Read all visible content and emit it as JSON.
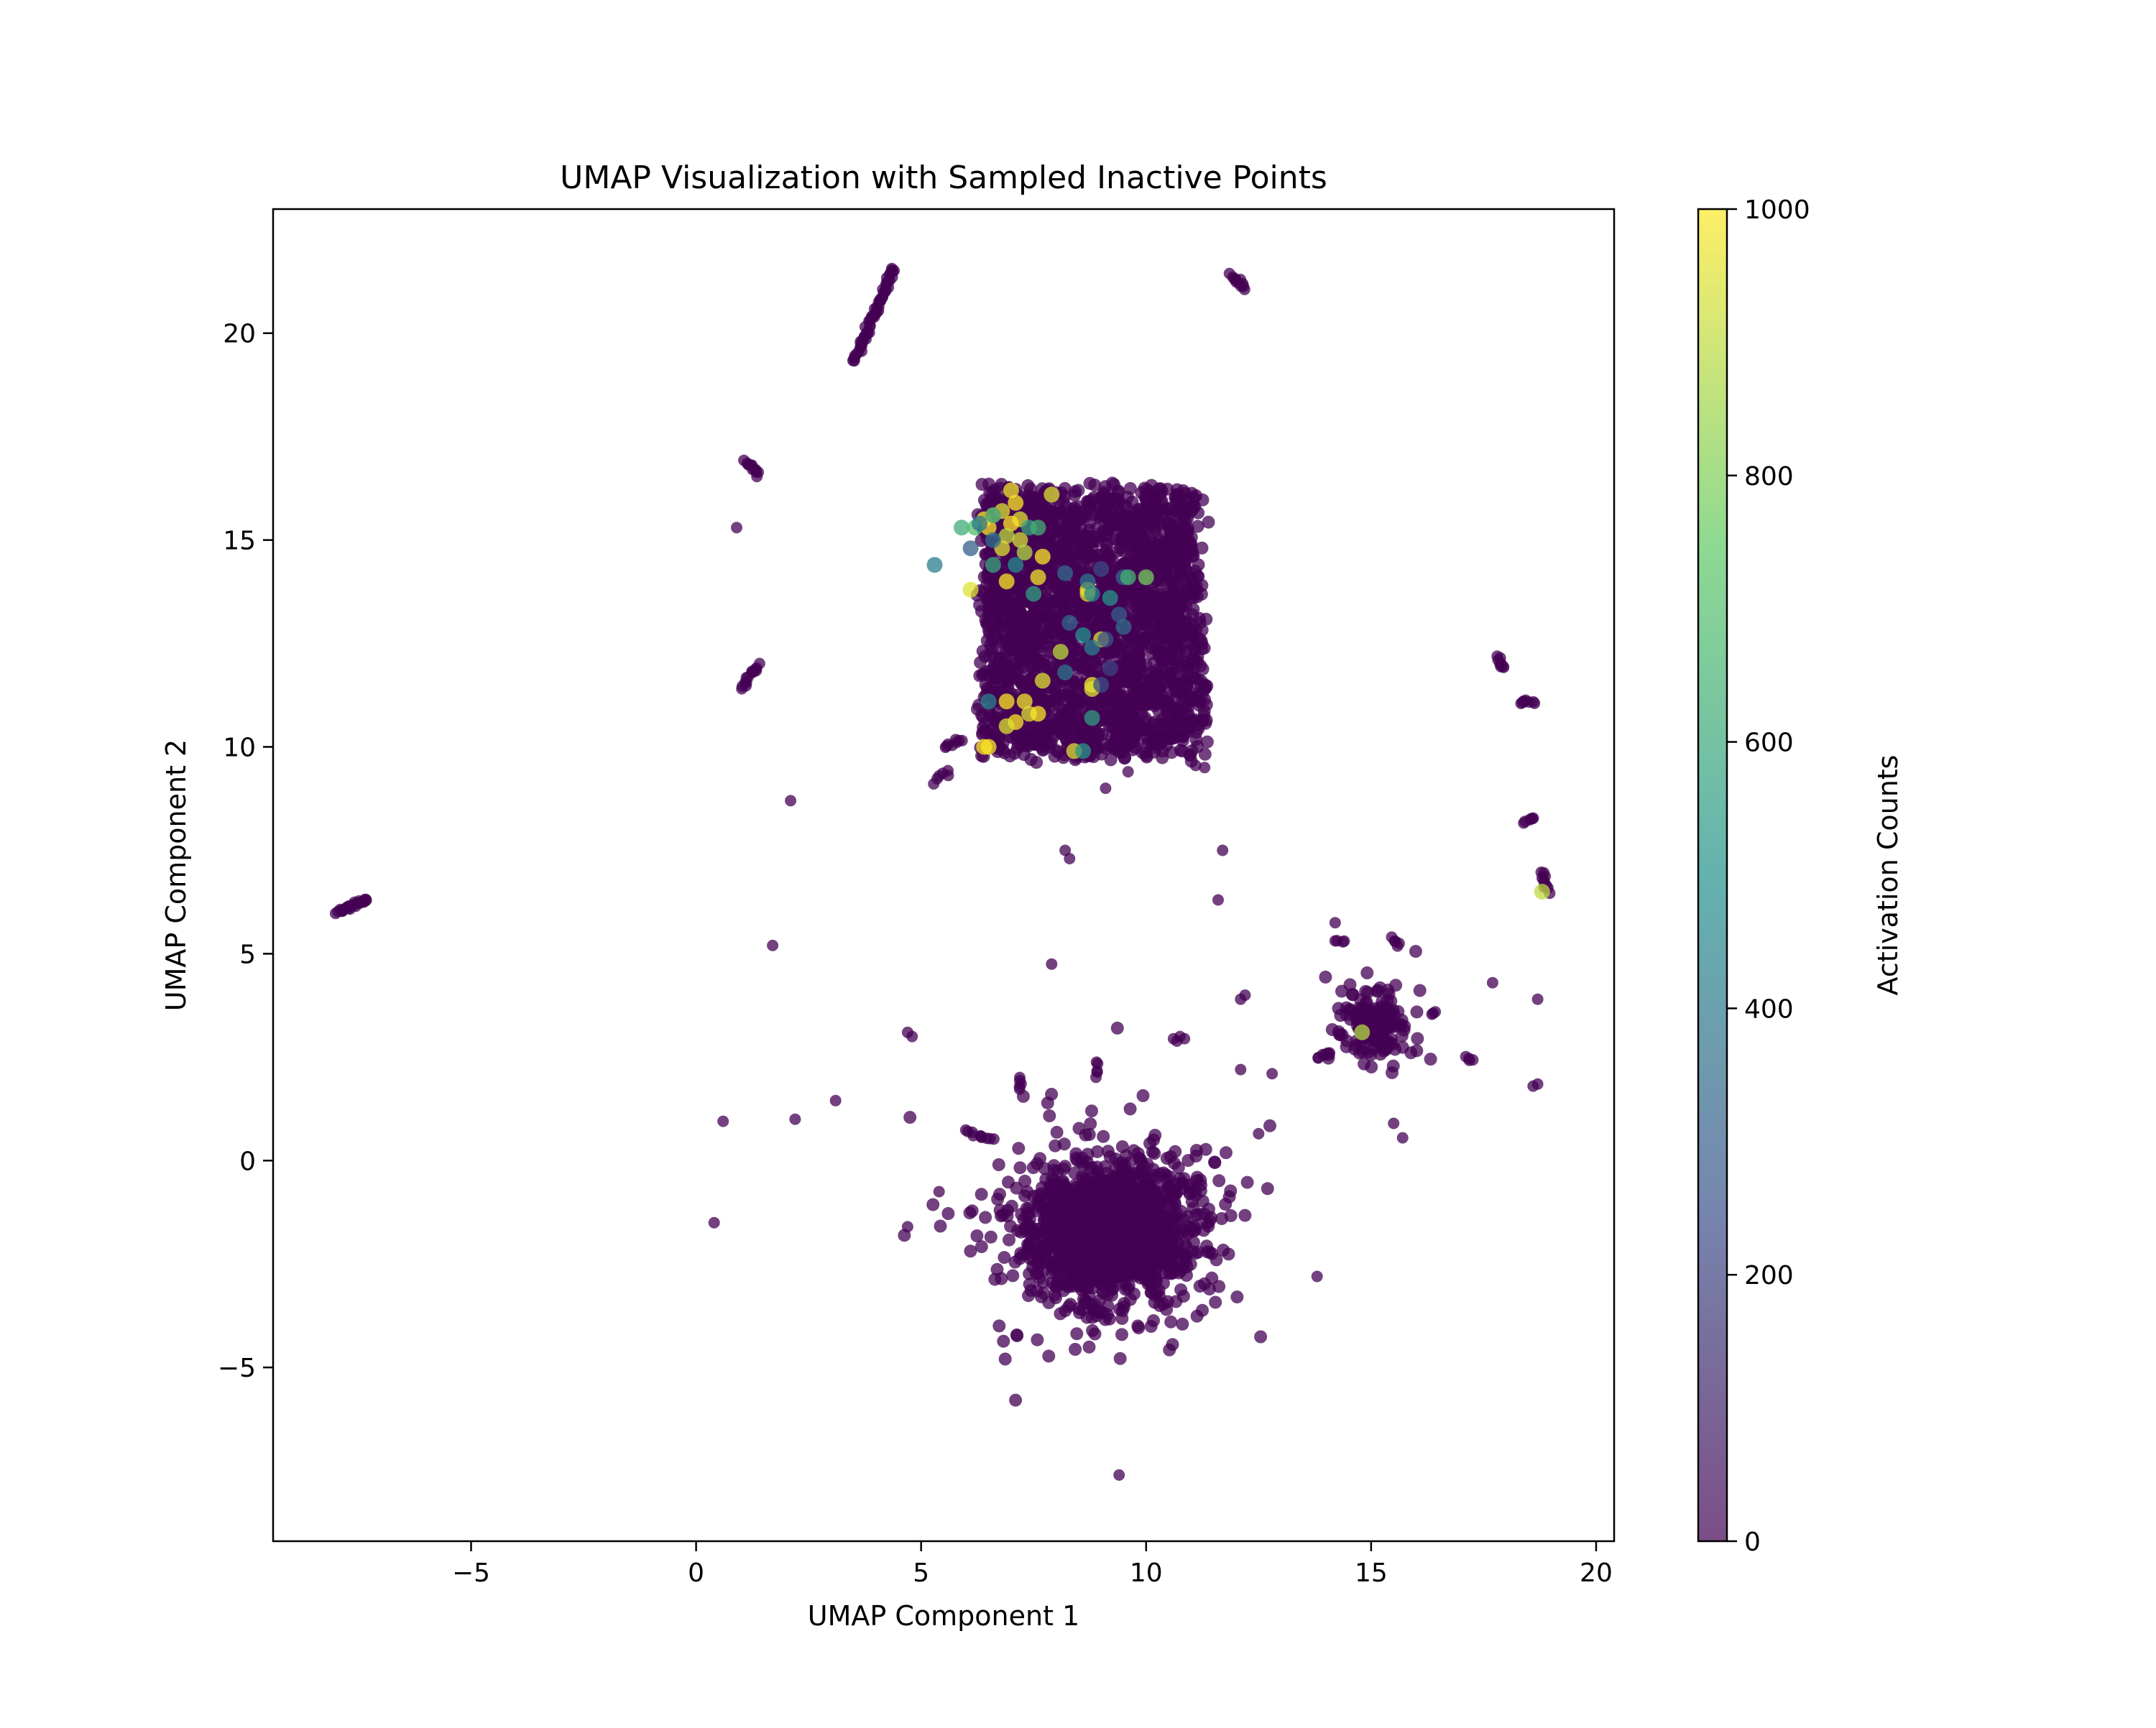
{
  "chart_data": {
    "type": "scatter",
    "title": "UMAP Visualization with Sampled Inactive Points",
    "xlabel": "UMAP Component 1",
    "ylabel": "UMAP Component 2",
    "xlim": [
      -9.4,
      20.4
    ],
    "ylim": [
      -9.2,
      23.0
    ],
    "x_ticks": [
      -5,
      0,
      5,
      10,
      15,
      20
    ],
    "x_tick_labels": [
      "−5",
      "0",
      "5",
      "10",
      "15",
      "20"
    ],
    "y_ticks": [
      -5,
      0,
      5,
      10,
      15,
      20
    ],
    "y_tick_labels": [
      "−5",
      "0",
      "5",
      "10",
      "15",
      "20"
    ],
    "grid": false,
    "colormap": "viridis",
    "colormap_stops": [
      "#440154",
      "#3b528b",
      "#21918c",
      "#5ec962",
      "#fde725"
    ],
    "colorbar": {
      "label": "Activation Counts",
      "min": 0,
      "max": 1000,
      "ticks": [
        0,
        200,
        400,
        600,
        800,
        1000
      ],
      "tick_labels": [
        "0",
        "200",
        "400",
        "600",
        "800",
        "1000"
      ]
    },
    "clusters": [
      {
        "cx": 8.8,
        "cy": 13.0,
        "rx": 2.6,
        "ry": 3.4,
        "count": 2600,
        "shape": "box"
      },
      {
        "cx": 9.2,
        "cy": -1.7,
        "rx": 1.9,
        "ry": 1.7,
        "count": 2400,
        "shape": "blob"
      },
      {
        "cx": 15.1,
        "cy": 3.3,
        "rx": 0.75,
        "ry": 0.75,
        "count": 260,
        "shape": "blob"
      }
    ],
    "strands": [
      {
        "from": [
          3.5,
          19.3
        ],
        "to": [
          4.4,
          21.6
        ],
        "count": 60
      },
      {
        "from": [
          11.9,
          21.4
        ],
        "to": [
          12.2,
          21.1
        ],
        "count": 12
      },
      {
        "from": [
          -8.0,
          6.0
        ],
        "to": [
          -7.3,
          6.3
        ],
        "count": 25
      },
      {
        "from": [
          1.1,
          16.9
        ],
        "to": [
          1.4,
          16.6
        ],
        "count": 12
      },
      {
        "from": [
          1.0,
          11.4
        ],
        "to": [
          1.4,
          12.0
        ],
        "count": 14
      },
      {
        "from": [
          17.8,
          12.2
        ],
        "to": [
          17.9,
          11.9
        ],
        "count": 8
      },
      {
        "from": [
          18.3,
          11.1
        ],
        "to": [
          18.6,
          11.1
        ],
        "count": 8
      },
      {
        "from": [
          18.4,
          8.2
        ],
        "to": [
          18.6,
          8.3
        ],
        "count": 6
      },
      {
        "from": [
          18.8,
          7.0
        ],
        "to": [
          18.9,
          6.5
        ],
        "count": 10
      },
      {
        "from": [
          6.0,
          0.7
        ],
        "to": [
          6.6,
          0.5
        ],
        "count": 10
      },
      {
        "from": [
          5.5,
          10.0
        ],
        "to": [
          5.9,
          10.2
        ],
        "count": 8
      },
      {
        "from": [
          5.3,
          9.2
        ],
        "to": [
          5.6,
          9.4
        ],
        "count": 6
      },
      {
        "from": [
          7.2,
          2.0
        ],
        "to": [
          7.2,
          1.7
        ],
        "count": 5
      },
      {
        "from": [
          8.9,
          2.4
        ],
        "to": [
          8.9,
          2.0
        ],
        "count": 5
      },
      {
        "from": [
          10.6,
          2.9
        ],
        "to": [
          10.8,
          3.0
        ],
        "count": 4
      },
      {
        "from": [
          15.5,
          5.4
        ],
        "to": [
          15.6,
          5.2
        ],
        "count": 5
      },
      {
        "from": [
          14.2,
          5.3
        ],
        "to": [
          14.4,
          5.3
        ],
        "count": 4
      },
      {
        "from": [
          13.8,
          2.5
        ],
        "to": [
          14.1,
          2.6
        ],
        "count": 6
      },
      {
        "from": [
          17.1,
          2.5
        ],
        "to": [
          17.3,
          2.4
        ],
        "count": 4
      },
      {
        "from": [
          16.3,
          3.5
        ],
        "to": [
          16.4,
          3.6
        ],
        "count": 3
      }
    ],
    "sparse_points": [
      [
        0.9,
        15.3
      ],
      [
        2.1,
        8.7
      ],
      [
        1.7,
        5.2
      ],
      [
        0.6,
        0.95
      ],
      [
        0.4,
        -1.5
      ],
      [
        2.2,
        1.0
      ],
      [
        3.1,
        1.45
      ],
      [
        4.7,
        3.1
      ],
      [
        4.8,
        3.0
      ],
      [
        4.7,
        -1.6
      ],
      [
        5.4,
        -0.75
      ],
      [
        7.9,
        4.75
      ],
      [
        8.2,
        7.5
      ],
      [
        8.3,
        7.3
      ],
      [
        9.4,
        -7.6
      ],
      [
        11.6,
        6.3
      ],
      [
        11.7,
        7.5
      ],
      [
        12.1,
        3.9
      ],
      [
        12.2,
        4.0
      ],
      [
        12.1,
        2.2
      ],
      [
        12.5,
        0.65
      ],
      [
        12.8,
        2.1
      ],
      [
        13.8,
        -2.8
      ],
      [
        14.2,
        5.75
      ],
      [
        15.5,
        0.9
      ],
      [
        15.7,
        0.55
      ],
      [
        17.7,
        4.3
      ],
      [
        18.7,
        3.9
      ],
      [
        18.7,
        1.85
      ],
      [
        18.6,
        1.8
      ],
      [
        9.1,
        9.0
      ],
      [
        9.6,
        9.4
      ],
      [
        11.3,
        9.5
      ],
      [
        11.1,
        9.55
      ]
    ],
    "active_points": [
      {
        "x": 6.4,
        "y": 15.5,
        "c": 1000
      },
      {
        "x": 6.6,
        "y": 15.6,
        "c": 1000
      },
      {
        "x": 6.5,
        "y": 15.3,
        "c": 1000
      },
      {
        "x": 6.8,
        "y": 15.7,
        "c": 950
      },
      {
        "x": 7.0,
        "y": 16.2,
        "c": 980
      },
      {
        "x": 7.1,
        "y": 15.9,
        "c": 1000
      },
      {
        "x": 7.2,
        "y": 15.5,
        "c": 950
      },
      {
        "x": 7.0,
        "y": 15.4,
        "c": 1000
      },
      {
        "x": 7.9,
        "y": 16.1,
        "c": 950
      },
      {
        "x": 6.9,
        "y": 15.1,
        "c": 900
      },
      {
        "x": 7.2,
        "y": 15.0,
        "c": 930
      },
      {
        "x": 6.8,
        "y": 14.8,
        "c": 950
      },
      {
        "x": 7.3,
        "y": 14.7,
        "c": 880
      },
      {
        "x": 7.7,
        "y": 14.6,
        "c": 1000
      },
      {
        "x": 7.6,
        "y": 14.1,
        "c": 980
      },
      {
        "x": 6.9,
        "y": 14.0,
        "c": 1000
      },
      {
        "x": 6.1,
        "y": 13.8,
        "c": 950
      },
      {
        "x": 8.7,
        "y": 13.8,
        "c": 1000
      },
      {
        "x": 8.7,
        "y": 13.7,
        "c": 950
      },
      {
        "x": 8.1,
        "y": 12.3,
        "c": 900
      },
      {
        "x": 9.0,
        "y": 12.6,
        "c": 950
      },
      {
        "x": 7.7,
        "y": 11.6,
        "c": 950
      },
      {
        "x": 8.8,
        "y": 11.5,
        "c": 980
      },
      {
        "x": 8.8,
        "y": 11.4,
        "c": 950
      },
      {
        "x": 6.9,
        "y": 11.1,
        "c": 1000
      },
      {
        "x": 7.3,
        "y": 11.1,
        "c": 980
      },
      {
        "x": 7.1,
        "y": 10.6,
        "c": 1000
      },
      {
        "x": 7.4,
        "y": 10.8,
        "c": 950
      },
      {
        "x": 7.6,
        "y": 10.8,
        "c": 1000
      },
      {
        "x": 6.9,
        "y": 10.5,
        "c": 950
      },
      {
        "x": 6.4,
        "y": 10.0,
        "c": 1000
      },
      {
        "x": 6.5,
        "y": 10.0,
        "c": 1000
      },
      {
        "x": 8.4,
        "y": 9.9,
        "c": 950
      },
      {
        "x": 18.8,
        "y": 6.5,
        "c": 900
      },
      {
        "x": 14.8,
        "y": 3.1,
        "c": 880
      },
      {
        "x": 5.9,
        "y": 15.3,
        "c": 620
      },
      {
        "x": 6.2,
        "y": 15.3,
        "c": 700
      },
      {
        "x": 6.3,
        "y": 15.4,
        "c": 400
      },
      {
        "x": 6.6,
        "y": 15.6,
        "c": 560
      },
      {
        "x": 7.4,
        "y": 15.3,
        "c": 580
      },
      {
        "x": 7.6,
        "y": 15.3,
        "c": 640
      },
      {
        "x": 6.6,
        "y": 15.0,
        "c": 380
      },
      {
        "x": 6.1,
        "y": 14.8,
        "c": 300
      },
      {
        "x": 6.6,
        "y": 14.4,
        "c": 600
      },
      {
        "x": 7.1,
        "y": 14.4,
        "c": 480
      },
      {
        "x": 5.3,
        "y": 14.4,
        "c": 420
      },
      {
        "x": 7.5,
        "y": 13.7,
        "c": 560
      },
      {
        "x": 8.2,
        "y": 14.2,
        "c": 350
      },
      {
        "x": 8.7,
        "y": 14.0,
        "c": 400
      },
      {
        "x": 9.0,
        "y": 14.3,
        "c": 220
      },
      {
        "x": 9.5,
        "y": 14.1,
        "c": 320
      },
      {
        "x": 9.6,
        "y": 14.1,
        "c": 650
      },
      {
        "x": 10.0,
        "y": 14.1,
        "c": 780
      },
      {
        "x": 9.2,
        "y": 13.6,
        "c": 520
      },
      {
        "x": 8.8,
        "y": 13.7,
        "c": 460
      },
      {
        "x": 9.4,
        "y": 13.2,
        "c": 300
      },
      {
        "x": 9.5,
        "y": 12.9,
        "c": 360
      },
      {
        "x": 8.3,
        "y": 13.0,
        "c": 330
      },
      {
        "x": 8.6,
        "y": 12.7,
        "c": 500
      },
      {
        "x": 8.8,
        "y": 12.4,
        "c": 420
      },
      {
        "x": 9.1,
        "y": 12.6,
        "c": 260
      },
      {
        "x": 8.2,
        "y": 11.8,
        "c": 380
      },
      {
        "x": 9.0,
        "y": 11.5,
        "c": 240
      },
      {
        "x": 8.8,
        "y": 10.7,
        "c": 560
      },
      {
        "x": 6.5,
        "y": 11.1,
        "c": 440
      },
      {
        "x": 8.6,
        "y": 9.9,
        "c": 520
      },
      {
        "x": 9.2,
        "y": 11.9,
        "c": 200
      }
    ]
  }
}
